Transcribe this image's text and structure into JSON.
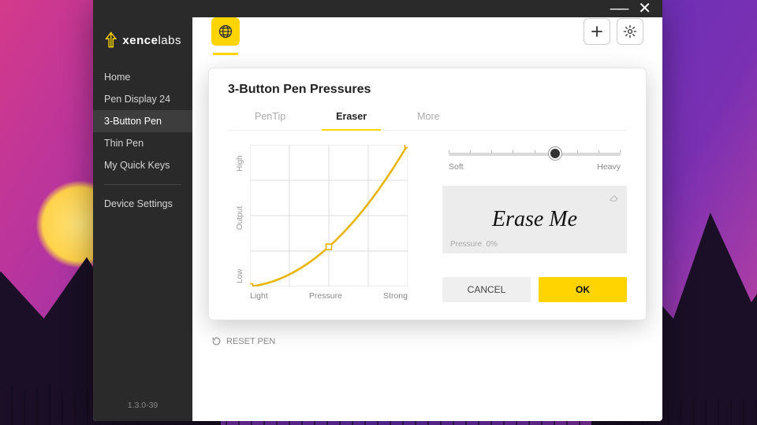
{
  "brand": {
    "name_bold": "xence",
    "name_light": "labs"
  },
  "colors": {
    "accent": "#ffd400",
    "sidebar_bg": "#2a2a2a",
    "card_border": "#e6e6e6",
    "text_muted": "#999",
    "grid": "#dcdcdc"
  },
  "sidebar": {
    "items": [
      {
        "label": "Home"
      },
      {
        "label": "Pen Display 24"
      },
      {
        "label": "3-Button Pen",
        "active": true
      },
      {
        "label": "Thin Pen"
      },
      {
        "label": "My Quick Keys"
      }
    ],
    "settings_label": "Device Settings",
    "version": "1.3.0-39"
  },
  "toolbar": {
    "add_tooltip": "Add",
    "settings_tooltip": "Settings"
  },
  "dialog": {
    "title": "3-Button Pen Pressures",
    "tabs": [
      {
        "label": "PenTip"
      },
      {
        "label": "Eraser",
        "active": true
      },
      {
        "label": "More"
      }
    ],
    "chart": {
      "type": "line",
      "size": 200,
      "xlim": [
        0,
        1
      ],
      "ylim": [
        0,
        1
      ],
      "grid_divisions": 4,
      "points": [
        [
          0,
          0
        ],
        [
          0.5,
          0.28
        ],
        [
          1,
          1
        ]
      ],
      "curve_color": "#e7b400",
      "curve_width": 2.5,
      "marker_size": 7,
      "marker_fill": "#ffffff",
      "y_axis_labels": {
        "low": "Low",
        "mid": "Output",
        "high": "High"
      },
      "x_axis_labels": {
        "low": "Light",
        "mid": "Pressure",
        "high": "Strong"
      },
      "axis_fontsize": 10,
      "axis_color": "#999999"
    },
    "slider": {
      "min_label": "Soft",
      "max_label": "Heavy",
      "value": 0.62,
      "ticks": 9,
      "track_color": "#d9d9d9",
      "knob_color": "#333333"
    },
    "erase_panel": {
      "text": "Erase Me",
      "pressure_label": "Pressure",
      "pressure_value": "0%",
      "bg": "#ececec"
    },
    "buttons": {
      "cancel": "CANCEL",
      "ok": "OK"
    },
    "reset_label": "RESET PEN"
  }
}
